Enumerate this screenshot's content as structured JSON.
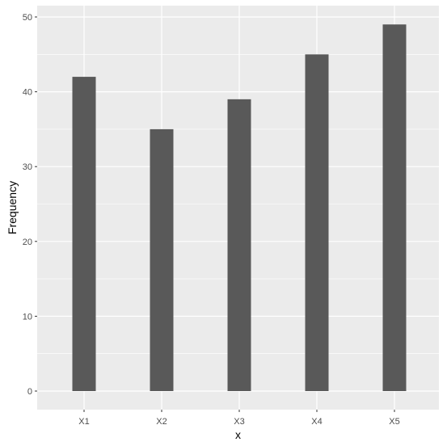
{
  "chart_data": {
    "type": "bar",
    "title": "",
    "xlabel": "x",
    "ylabel": "Frequency",
    "categories": [
      "X1",
      "X2",
      "X3",
      "X4",
      "X5"
    ],
    "values": [
      42,
      35,
      39,
      45,
      49
    ],
    "ylim": [
      0,
      51.5
    ],
    "yticks": [
      0,
      10,
      20,
      30,
      40,
      50
    ],
    "ytick_labels": [
      "0",
      "10",
      "20",
      "30",
      "40",
      "50"
    ],
    "grid": true,
    "legend": "none",
    "colors": {
      "panel_background": "#ebebeb",
      "grid_major": "#ffffff",
      "bar_fill": "#595959",
      "tick_text": "#4d4d4d",
      "axis_title_text": "#000000"
    }
  }
}
